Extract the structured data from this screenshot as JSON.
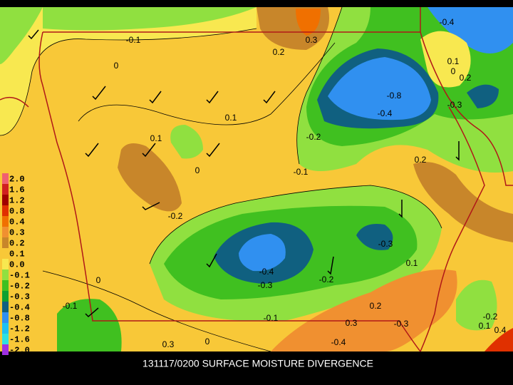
{
  "title": "131117/0200 SURFACE MOISTURE DIVERGENCE",
  "contour_labels": [
    "-0.1",
    "0",
    "0.2",
    "0.3",
    "-0.4",
    "0.1",
    "0",
    "0.2",
    "-0.8",
    "-0.4",
    "-0.3",
    "0.1",
    "0.1",
    "-0.2",
    "0",
    "-0.1",
    "0.2",
    "-0.2",
    "-0.3",
    "0.1",
    "-0.4",
    "-0.3",
    "-0.2",
    "0",
    "-0.1",
    "0.2",
    "-0.1",
    "0.3",
    "-0.3",
    "0.1",
    "-0.4",
    "0.3",
    "0",
    "-0.2",
    "0.4"
  ],
  "legend": [
    {
      "label": "2.0",
      "color": "#f06070"
    },
    {
      "label": "1.6",
      "color": "#d02020"
    },
    {
      "label": "1.2",
      "color": "#a00000"
    },
    {
      "label": "0.8",
      "color": "#e03000"
    },
    {
      "label": "0.4",
      "color": "#f07000"
    },
    {
      "label": "0.3",
      "color": "#f09030"
    },
    {
      "label": "0.2",
      "color": "#c8862a"
    },
    {
      "label": "0.1",
      "color": "#f8c838"
    },
    {
      "label": "0.0",
      "color": "#f8e850"
    },
    {
      "label": "-0.1",
      "color": "#90e040"
    },
    {
      "label": "-0.2",
      "color": "#40c020"
    },
    {
      "label": "-0.3",
      "color": "#10a030"
    },
    {
      "label": "-0.4",
      "color": "#106080"
    },
    {
      "label": "-0.8",
      "color": "#3090f0"
    },
    {
      "label": "-1.2",
      "color": "#20c0f0"
    },
    {
      "label": "-1.6",
      "color": "#30e0e0"
    },
    {
      "label": "-2.0",
      "color": "#a030e0"
    }
  ]
}
